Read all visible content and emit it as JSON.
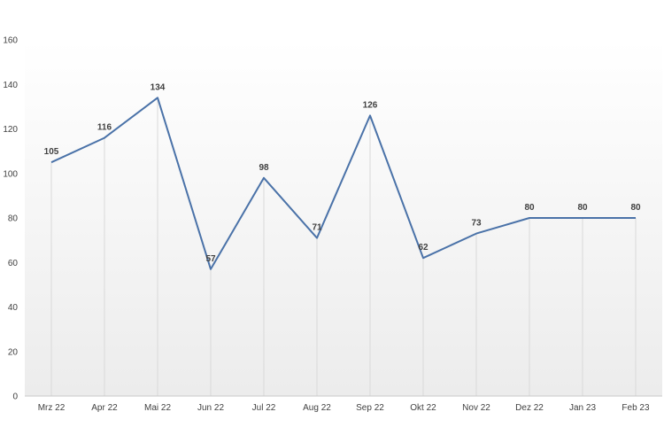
{
  "chart_data": {
    "type": "line",
    "title": "",
    "xlabel": "",
    "ylabel": "",
    "categories": [
      "Mrz 22",
      "Apr 22",
      "Mai 22",
      "Jun 22",
      "Jul 22",
      "Aug 22",
      "Sep 22",
      "Okt 22",
      "Nov 22",
      "Dez 22",
      "Jan 23",
      "Feb 23"
    ],
    "series": [
      {
        "values": [
          105,
          116,
          134,
          57,
          98,
          71,
          126,
          62,
          73,
          80,
          80,
          80
        ]
      }
    ],
    "ylim": [
      0,
      160
    ],
    "yticks": [
      "0",
      "20",
      "40",
      "60",
      "80",
      "100",
      "120",
      "140",
      "160"
    ],
    "data_labels": [
      "105",
      "116",
      "134",
      "57",
      "98",
      "71",
      "126",
      "62",
      "73",
      "80",
      "80",
      "80"
    ],
    "grid": "vertical lines at categories",
    "legend": "none",
    "line_color": "#4a72a8",
    "plot_background": "gradient white to light gray",
    "gridline_color": "#d9d9d9"
  }
}
